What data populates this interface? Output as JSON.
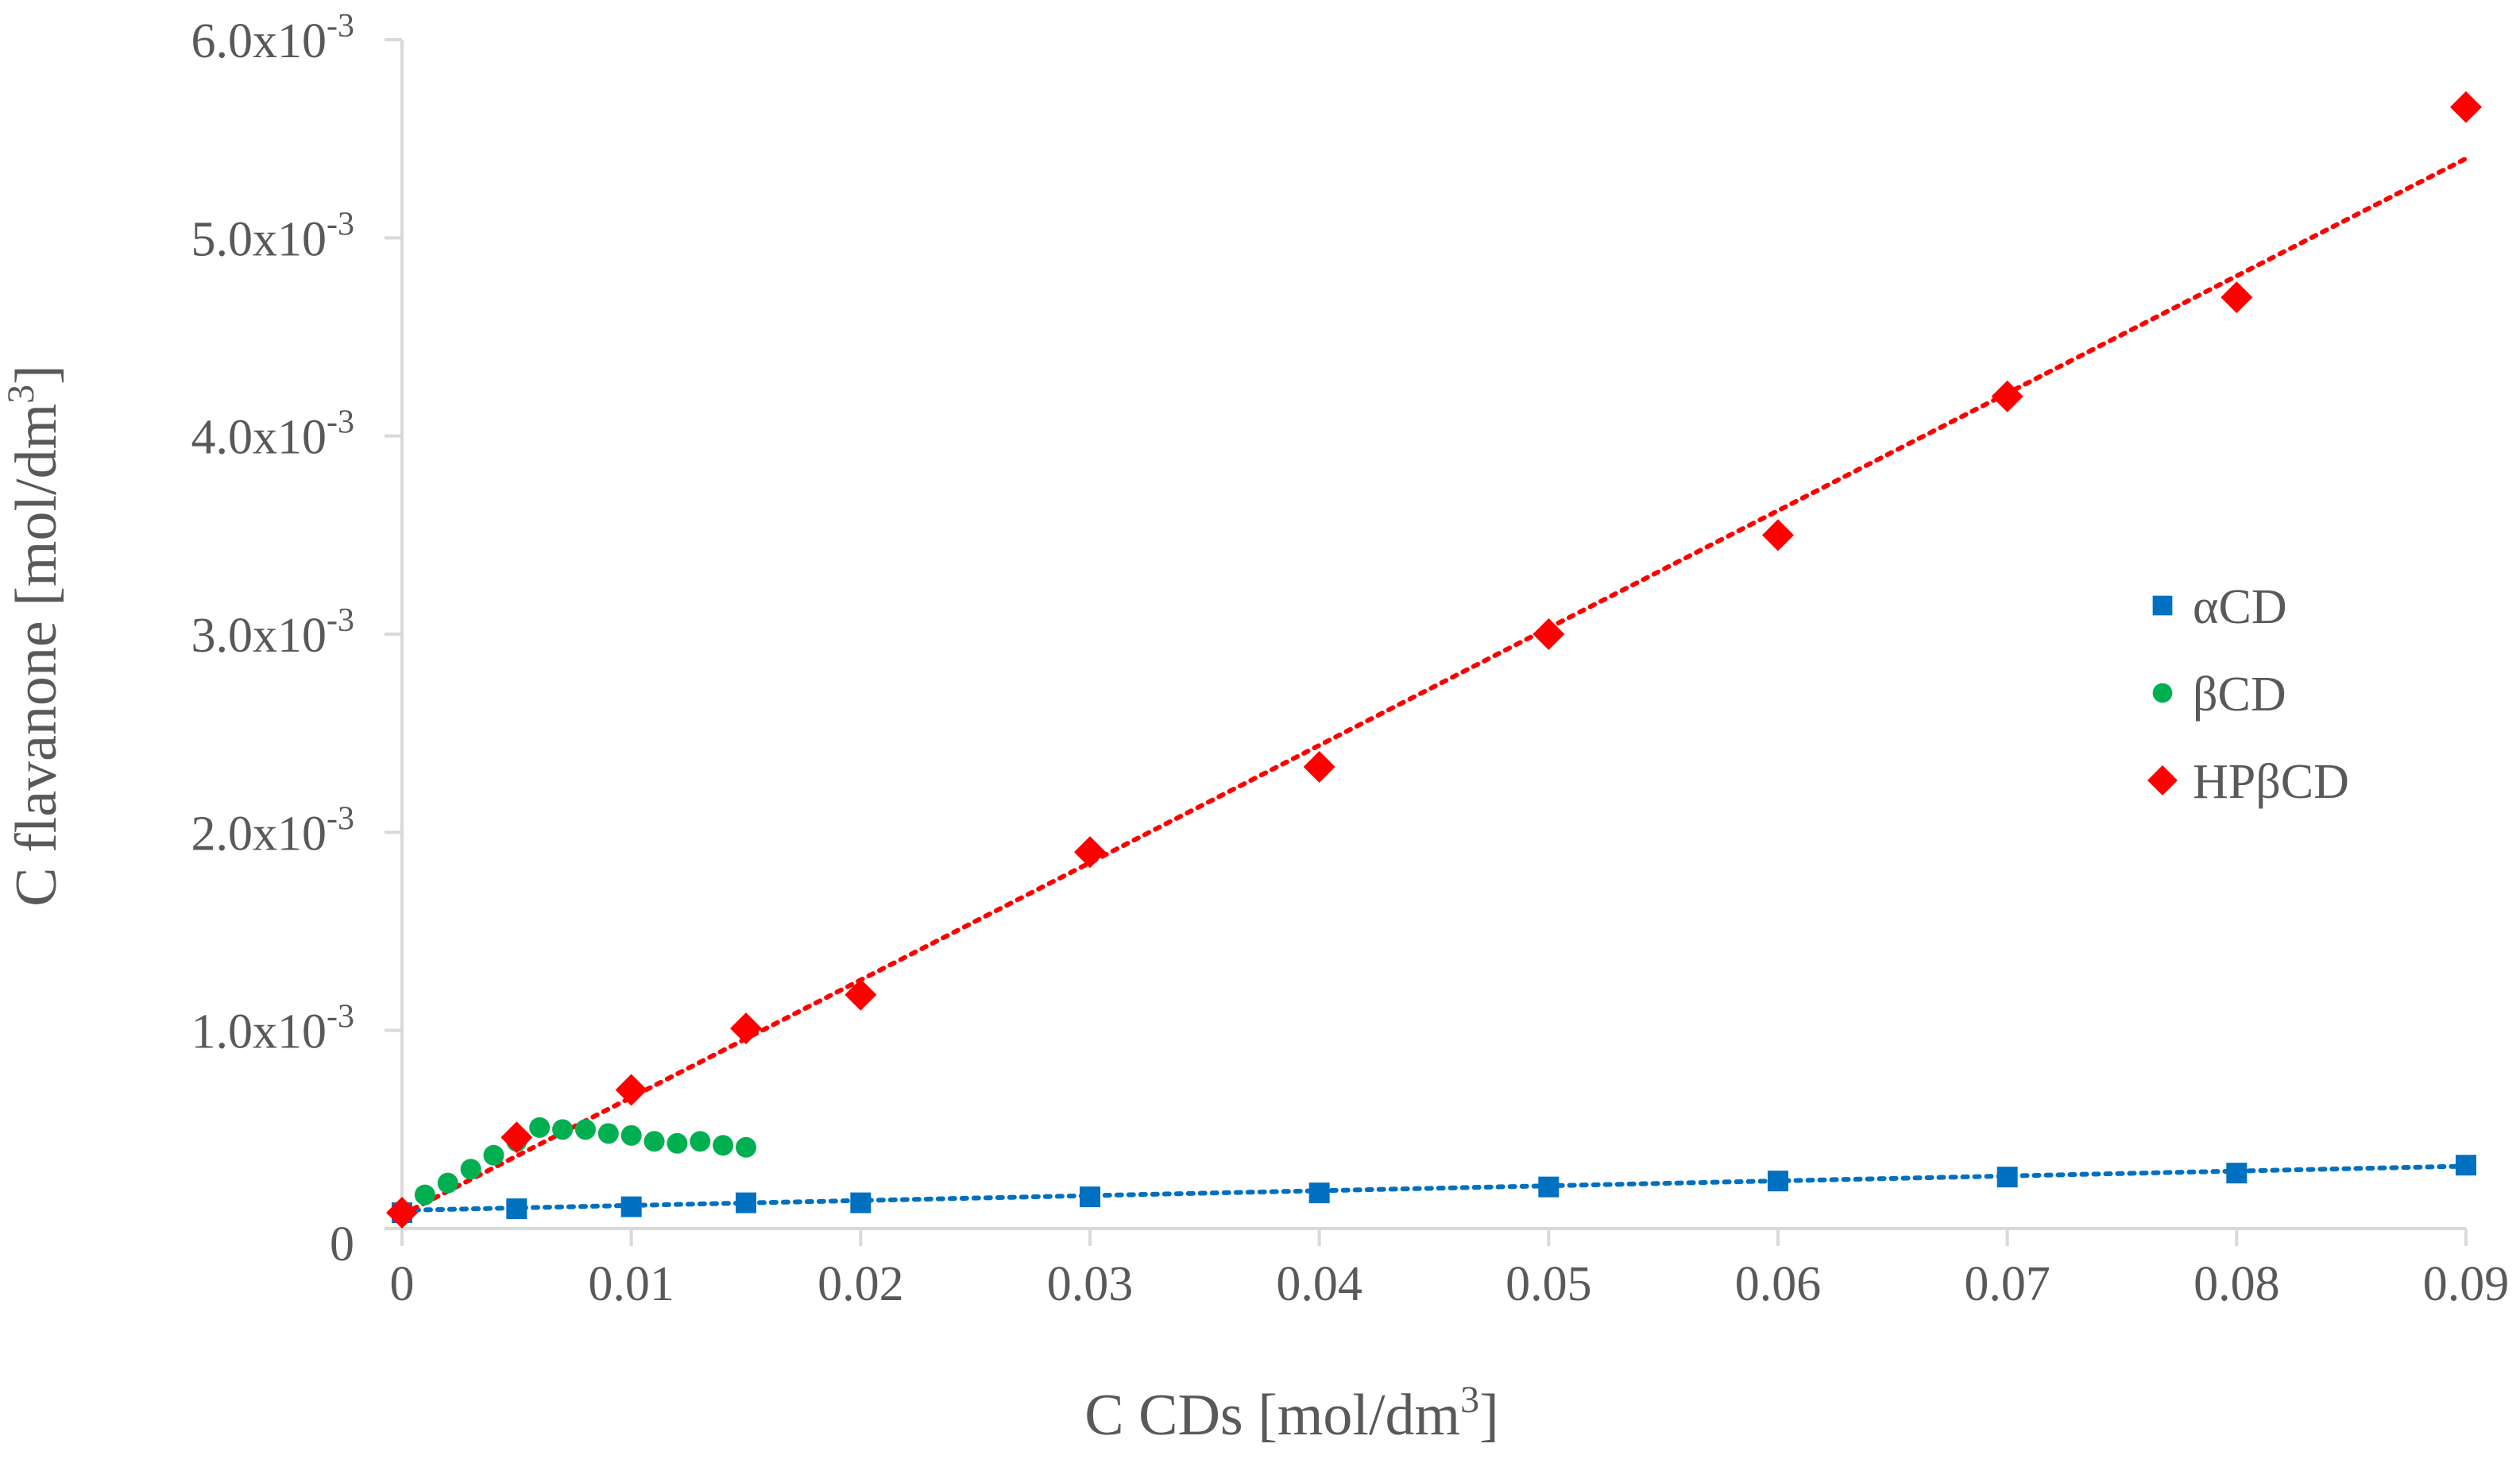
{
  "chart_data": {
    "type": "scatter",
    "title": "",
    "xlabel": "C CDs [mol/dm",
    "xlabel_sup": "3",
    "xlabel_end": "]",
    "ylabel": "C flavanone [mol/dm",
    "ylabel_sup": "3",
    "ylabel_end": "]",
    "xlim": [
      0,
      0.09
    ],
    "ylim": [
      0,
      0.006
    ],
    "grid": false,
    "legend_position": "right",
    "x_ticks": [
      {
        "value": 0,
        "label": "0"
      },
      {
        "value": 0.01,
        "label": "0.01"
      },
      {
        "value": 0.02,
        "label": "0.02"
      },
      {
        "value": 0.03,
        "label": "0.03"
      },
      {
        "value": 0.04,
        "label": "0.04"
      },
      {
        "value": 0.05,
        "label": "0.05"
      },
      {
        "value": 0.06,
        "label": "0.06"
      },
      {
        "value": 0.07,
        "label": "0.07"
      },
      {
        "value": 0.08,
        "label": "0.08"
      },
      {
        "value": 0.09,
        "label": "0.09"
      }
    ],
    "y_ticks": [
      {
        "value": 0,
        "mantissa": "0",
        "exponent": ""
      },
      {
        "value": 0.001,
        "mantissa": "1.0x10",
        "exponent": "-3"
      },
      {
        "value": 0.002,
        "mantissa": "2.0x10",
        "exponent": "-3"
      },
      {
        "value": 0.003,
        "mantissa": "3.0x10",
        "exponent": "-3"
      },
      {
        "value": 0.004,
        "mantissa": "4.0x10",
        "exponent": "-3"
      },
      {
        "value": 0.005,
        "mantissa": "5.0x10",
        "exponent": "-3"
      },
      {
        "value": 0.006,
        "mantissa": "6.0x10",
        "exponent": "-3"
      }
    ],
    "series": [
      {
        "name": "αCD",
        "marker": "square",
        "color": "#0070C0",
        "trendline": {
          "style": "dotted",
          "x0": 0,
          "y0": 9.2e-05,
          "x1": 0.09,
          "y1": 0.000315
        },
        "x": [
          0,
          0.005,
          0.01,
          0.015,
          0.02,
          0.03,
          0.04,
          0.05,
          0.06,
          0.07,
          0.08,
          0.09
        ],
        "y": [
          8e-05,
          0.0001,
          0.00011,
          0.00013,
          0.00013,
          0.00016,
          0.00018,
          0.00021,
          0.00024,
          0.00026,
          0.00028,
          0.00032
        ]
      },
      {
        "name": "βCD",
        "marker": "circle",
        "color": "#00B050",
        "trendline": null,
        "x": [
          0,
          0.001,
          0.002,
          0.003,
          0.004,
          0.005,
          0.006,
          0.007,
          0.008,
          0.009,
          0.01,
          0.011,
          0.012,
          0.013,
          0.014,
          0.015
        ],
        "y": [
          8e-05,
          0.00017,
          0.00023,
          0.0003,
          0.00037,
          0.00044,
          0.00051,
          0.0005,
          0.0005,
          0.00048,
          0.00047,
          0.00044,
          0.00043,
          0.00044,
          0.00042,
          0.00041
        ]
      },
      {
        "name": "HPβCD",
        "marker": "diamond",
        "color": "#FF0000",
        "trendline": {
          "style": "dotted",
          "x0": 0,
          "y0": 7e-05,
          "x1": 0.09,
          "y1": 0.0054
        },
        "x": [
          0,
          0.005,
          0.01,
          0.015,
          0.02,
          0.03,
          0.04,
          0.05,
          0.06,
          0.07,
          0.08,
          0.09
        ],
        "y": [
          8e-05,
          0.00046,
          0.0007,
          0.00101,
          0.00118,
          0.0019,
          0.00233,
          0.003,
          0.0035,
          0.0042,
          0.0047,
          0.00566
        ]
      }
    ]
  }
}
